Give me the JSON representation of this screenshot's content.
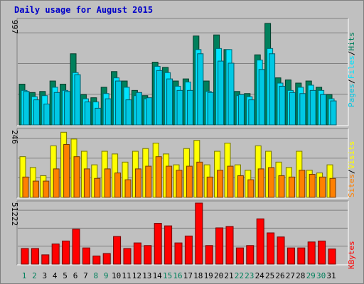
{
  "title": "Daily usage for August 2015",
  "colors": {
    "hits": "#00805c",
    "files": "#00e4ff",
    "pages": "#00c8e4",
    "visits": "#ffff00",
    "sites": "#ff8000",
    "kbytes": "#ff0000",
    "text_blue": "#0000c8",
    "weekend_green": "#00805c",
    "weekday_black": "#000000"
  },
  "chart_data": [
    {
      "type": "bar",
      "title": "Daily usage for August 2015",
      "categories": [
        "1",
        "2",
        "3",
        "4",
        "5",
        "6",
        "7",
        "8",
        "9",
        "10",
        "11",
        "12",
        "13",
        "14",
        "15",
        "16",
        "17",
        "18",
        "19",
        "20",
        "21",
        "22",
        "23",
        "24",
        "25",
        "26",
        "27",
        "28",
        "29",
        "30",
        "31"
      ],
      "weekend_days": [
        "1",
        "2",
        "8",
        "9",
        "15",
        "16",
        "22",
        "23",
        "29",
        "30"
      ],
      "ymax_label": "997",
      "ylim": [
        0,
        997
      ],
      "legend": [
        "Pages",
        "/",
        "Files",
        "/",
        "Hits"
      ],
      "series": [
        {
          "name": "Hits",
          "values": [
            390,
            310,
            320,
            420,
            390,
            680,
            290,
            260,
            360,
            510,
            420,
            330,
            280,
            600,
            550,
            420,
            440,
            850,
            420,
            860,
            720,
            320,
            300,
            670,
            970,
            450,
            430,
            400,
            420,
            360,
            290
          ]
        },
        {
          "name": "Files",
          "values": [
            330,
            270,
            280,
            360,
            330,
            500,
            250,
            220,
            300,
            450,
            360,
            280,
            250,
            560,
            500,
            370,
            410,
            720,
            320,
            730,
            720,
            280,
            270,
            620,
            730,
            400,
            330,
            360,
            380,
            330,
            250
          ]
        },
        {
          "name": "Pages",
          "values": [
            320,
            240,
            200,
            310,
            320,
            480,
            220,
            160,
            250,
            420,
            240,
            310,
            260,
            520,
            440,
            330,
            330,
            680,
            310,
            610,
            590,
            290,
            240,
            530,
            680,
            370,
            310,
            300,
            330,
            290,
            230
          ]
        }
      ]
    },
    {
      "type": "bar",
      "ymax_label": "246",
      "ylim": [
        0,
        246
      ],
      "legend": [
        "Sites",
        "/",
        "Visits"
      ],
      "series": [
        {
          "name": "Visits",
          "values": [
            150,
            110,
            80,
            190,
            240,
            215,
            170,
            120,
            170,
            160,
            130,
            170,
            180,
            200,
            160,
            120,
            180,
            210,
            120,
            170,
            200,
            120,
            100,
            190,
            170,
            130,
            110,
            170,
            100,
            90,
            120
          ]
        },
        {
          "name": "Sites",
          "values": [
            75,
            60,
            60,
            105,
            195,
            150,
            105,
            70,
            105,
            90,
            65,
            105,
            115,
            150,
            115,
            100,
            115,
            130,
            75,
            100,
            115,
            80,
            65,
            105,
            110,
            80,
            75,
            100,
            85,
            75,
            70
          ]
        }
      ]
    },
    {
      "type": "bar",
      "ymax_label": "51222",
      "ylim": [
        0,
        51222
      ],
      "legend": [
        "KBytes"
      ],
      "series": [
        {
          "name": "KBytes",
          "values": [
            13100,
            13100,
            7800,
            16900,
            19400,
            29300,
            13600,
            6800,
            8900,
            23200,
            13100,
            17800,
            15600,
            34200,
            32100,
            17800,
            23600,
            51222,
            15600,
            30400,
            31600,
            13600,
            15600,
            38000,
            26200,
            22800,
            13600,
            13600,
            18600,
            19400,
            12700
          ]
        }
      ]
    }
  ]
}
